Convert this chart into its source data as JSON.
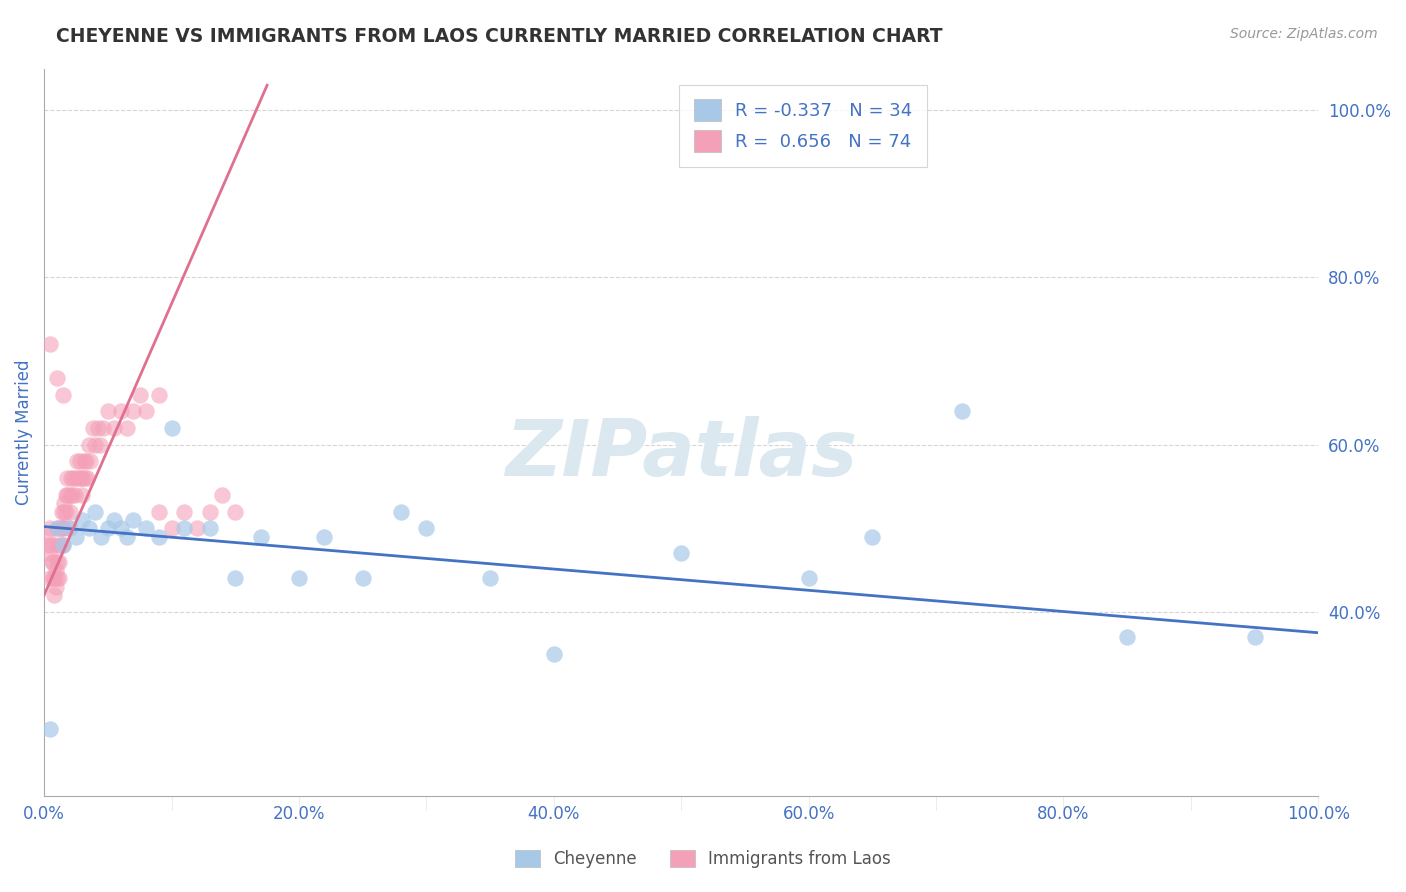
{
  "title": "CHEYENNE VS IMMIGRANTS FROM LAOS CURRENTLY MARRIED CORRELATION CHART",
  "source_text": "Source: ZipAtlas.com",
  "ylabel": "Currently Married",
  "legend_entries": [
    {
      "label": "R = -0.337   N = 34",
      "color": "#a8c8e8"
    },
    {
      "label": "R =  0.656   N = 74",
      "color": "#f4a0b8"
    }
  ],
  "cheyenne_color": "#a8c8e8",
  "laos_color": "#f4a0b8",
  "cheyenne_line_color": "#4472c4",
  "laos_line_color": "#e07090",
  "watermark": "ZIPatlas",
  "watermark_color": "#dce8f0",
  "title_color": "#333333",
  "axis_label_color": "#4472c4",
  "tick_color": "#4472c4",
  "grid_color": "#cccccc",
  "background_color": "#ffffff",
  "cheyenne_scatter_x": [
    0.005,
    0.01,
    0.015,
    0.02,
    0.025,
    0.03,
    0.035,
    0.04,
    0.045,
    0.05,
    0.055,
    0.06,
    0.065,
    0.07,
    0.08,
    0.09,
    0.1,
    0.11,
    0.13,
    0.15,
    0.17,
    0.2,
    0.22,
    0.25,
    0.28,
    0.3,
    0.35,
    0.4,
    0.5,
    0.6,
    0.65,
    0.72,
    0.85,
    0.95
  ],
  "cheyenne_scatter_y": [
    0.26,
    0.5,
    0.48,
    0.5,
    0.49,
    0.51,
    0.5,
    0.52,
    0.49,
    0.5,
    0.51,
    0.5,
    0.49,
    0.51,
    0.5,
    0.49,
    0.62,
    0.5,
    0.5,
    0.44,
    0.49,
    0.44,
    0.49,
    0.44,
    0.52,
    0.5,
    0.44,
    0.35,
    0.47,
    0.44,
    0.49,
    0.64,
    0.37,
    0.37
  ],
  "laos_scatter_x": [
    0.002,
    0.003,
    0.004,
    0.005,
    0.005,
    0.006,
    0.006,
    0.007,
    0.007,
    0.008,
    0.008,
    0.009,
    0.009,
    0.01,
    0.01,
    0.011,
    0.011,
    0.012,
    0.012,
    0.013,
    0.013,
    0.014,
    0.014,
    0.015,
    0.015,
    0.016,
    0.016,
    0.017,
    0.017,
    0.018,
    0.018,
    0.019,
    0.02,
    0.02,
    0.021,
    0.022,
    0.023,
    0.024,
    0.025,
    0.026,
    0.027,
    0.028,
    0.029,
    0.03,
    0.03,
    0.031,
    0.032,
    0.033,
    0.034,
    0.035,
    0.036,
    0.038,
    0.04,
    0.042,
    0.044,
    0.046,
    0.05,
    0.055,
    0.06,
    0.065,
    0.07,
    0.075,
    0.08,
    0.09,
    0.1,
    0.11,
    0.12,
    0.13,
    0.14,
    0.15,
    0.005,
    0.01,
    0.015,
    0.09
  ],
  "laos_scatter_y": [
    0.49,
    0.48,
    0.47,
    0.5,
    0.44,
    0.46,
    0.48,
    0.44,
    0.46,
    0.42,
    0.44,
    0.43,
    0.45,
    0.44,
    0.46,
    0.48,
    0.5,
    0.44,
    0.46,
    0.48,
    0.5,
    0.52,
    0.5,
    0.48,
    0.5,
    0.52,
    0.53,
    0.54,
    0.52,
    0.54,
    0.56,
    0.5,
    0.52,
    0.54,
    0.56,
    0.54,
    0.56,
    0.54,
    0.56,
    0.58,
    0.56,
    0.58,
    0.56,
    0.54,
    0.56,
    0.58,
    0.56,
    0.58,
    0.56,
    0.6,
    0.58,
    0.62,
    0.6,
    0.62,
    0.6,
    0.62,
    0.64,
    0.62,
    0.64,
    0.62,
    0.64,
    0.66,
    0.64,
    0.66,
    0.5,
    0.52,
    0.5,
    0.52,
    0.54,
    0.52,
    0.72,
    0.68,
    0.66,
    0.52
  ],
  "xlim": [
    0.0,
    1.0
  ],
  "ylim": [
    0.18,
    1.05
  ],
  "xticks": [
    0.0,
    0.2,
    0.4,
    0.6,
    0.8,
    1.0
  ],
  "xticklabels": [
    "0.0%",
    "20.0%",
    "40.0%",
    "60.0%",
    "80.0%",
    "100.0%"
  ],
  "yticks": [
    0.4,
    0.6,
    0.8,
    1.0
  ],
  "yticklabels": [
    "40.0%",
    "60.0%",
    "80.0%",
    "100.0%"
  ],
  "cheyenne_line_x0": 0.0,
  "cheyenne_line_y0": 0.502,
  "cheyenne_line_x1": 1.0,
  "cheyenne_line_y1": 0.375,
  "laos_line_x0": 0.0,
  "laos_line_y0": 0.42,
  "laos_line_x1": 0.175,
  "laos_line_y1": 1.03
}
